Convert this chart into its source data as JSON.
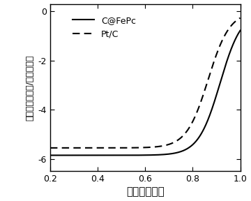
{
  "title": "",
  "xlabel": "电势（伏特）",
  "ylabel": "电流密度（毫安/平方厘米）",
  "ylabel_chars": [
    "电",
    "流",
    "密",
    "度",
    "（毫安",
    "/平方厘米）"
  ],
  "xlim": [
    0.2,
    1.0
  ],
  "ylim": [
    -6.5,
    0.3
  ],
  "yticks": [
    0,
    -2,
    -4,
    -6
  ],
  "xticks": [
    0.2,
    0.4,
    0.6,
    0.8,
    1.0
  ],
  "legend_labels": [
    "C@FePc",
    "Pt/C"
  ],
  "background_color": "#ffffff",
  "line_color": "#000000",
  "figsize": [
    3.6,
    2.88
  ],
  "dpi": 100,
  "cfepco_il": -5.85,
  "cfepco_onset": 0.915,
  "cfepco_steepness": 22,
  "ptc_il": -5.55,
  "ptc_onset": 0.865,
  "ptc_steepness": 22
}
